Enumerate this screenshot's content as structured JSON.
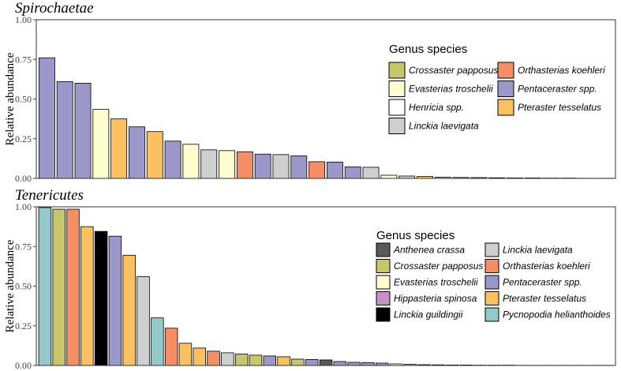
{
  "colors": {
    "Anthenea crassa": "#5a5a5a",
    "Crossaster papposus": "#c8c66a",
    "Evasterias troschelii": "#fdfdd0",
    "Henricia spp.": "#ffffff",
    "Hippasteria spinosa": "#c98fcb",
    "Linckia guildingii": "#000000",
    "Linckia laevigata": "#cfcfcf",
    "Orthasterias koehleri": "#f58d65",
    "Pentaceraster spp.": "#9b97c9",
    "Pteraster tesselatus": "#fbc160",
    "Pycnopodia helianthoides": "#93c9c9"
  },
  "chart_data": [
    {
      "type": "bar",
      "title": "Spirochaetae",
      "ylabel": "Relative abundance",
      "ylim": [
        0,
        1
      ],
      "yticks": [
        "0.00",
        "0.25",
        "0.50",
        "0.75",
        "1.00"
      ],
      "legend_title": "Genus species",
      "legend_position": "top-right",
      "legend": [
        "Crossaster papposus",
        "Evasterias troschelii",
        "Henricia spp.",
        "Linckia laevigata",
        "Orthasterias koehleri",
        "Pentaceraster spp.",
        "Pteraster tesselatus"
      ],
      "bars": [
        {
          "species": "Pentaceraster spp.",
          "value": 0.76
        },
        {
          "species": "Pentaceraster spp.",
          "value": 0.61
        },
        {
          "species": "Pentaceraster spp.",
          "value": 0.6
        },
        {
          "species": "Evasterias troschelii",
          "value": 0.435
        },
        {
          "species": "Pteraster tesselatus",
          "value": 0.375
        },
        {
          "species": "Pentaceraster spp.",
          "value": 0.325
        },
        {
          "species": "Pteraster tesselatus",
          "value": 0.295
        },
        {
          "species": "Pentaceraster spp.",
          "value": 0.235
        },
        {
          "species": "Evasterias troschelii",
          "value": 0.215
        },
        {
          "species": "Linckia laevigata",
          "value": 0.18
        },
        {
          "species": "Evasterias troschelii",
          "value": 0.175
        },
        {
          "species": "Orthasterias koehleri",
          "value": 0.168
        },
        {
          "species": "Pentaceraster spp.",
          "value": 0.153
        },
        {
          "species": "Linckia laevigata",
          "value": 0.15
        },
        {
          "species": "Pentaceraster spp.",
          "value": 0.142
        },
        {
          "species": "Orthasterias koehleri",
          "value": 0.105
        },
        {
          "species": "Pentaceraster spp.",
          "value": 0.103
        },
        {
          "species": "Pentaceraster spp.",
          "value": 0.073
        },
        {
          "species": "Linckia laevigata",
          "value": 0.07
        },
        {
          "species": "Evasterias troschelii",
          "value": 0.02
        },
        {
          "species": "Linckia laevigata",
          "value": 0.015
        },
        {
          "species": "Pteraster tesselatus",
          "value": 0.012
        },
        {
          "species": "Linckia laevigata",
          "value": 0.008
        },
        {
          "species": "Linckia laevigata",
          "value": 0.006
        },
        {
          "species": "Pentaceraster spp.",
          "value": 0.005
        },
        {
          "species": "Linckia laevigata",
          "value": 0.004
        },
        {
          "species": "Linckia laevigata",
          "value": 0.003
        },
        {
          "species": "Linckia laevigata",
          "value": 0.003
        },
        {
          "species": "Linckia laevigata",
          "value": 0.002
        },
        {
          "species": "Linckia laevigata",
          "value": 0.002
        },
        {
          "species": "Linckia laevigata",
          "value": 0.001
        },
        {
          "species": "Linckia laevigata",
          "value": 0.001
        }
      ]
    },
    {
      "type": "bar",
      "title": "Tenericutes",
      "ylabel": "Relative abundance",
      "ylim": [
        0,
        1
      ],
      "yticks": [
        "0.00",
        "0.25",
        "0.50",
        "0.75",
        "1.00"
      ],
      "legend_title": "Genus species",
      "legend_position": "right",
      "legend": [
        "Anthenea crassa",
        "Crossaster papposus",
        "Evasterias troschelii",
        "Hippasteria spinosa",
        "Linckia guildingii",
        "Linckia laevigata",
        "Orthasterias koehleri",
        "Pentaceraster spp.",
        "Pteraster tesselatus",
        "Pycnopodia helianthoides"
      ],
      "bars": [
        {
          "species": "Pycnopodia helianthoides",
          "value": 0.995
        },
        {
          "species": "Crossaster papposus",
          "value": 0.985
        },
        {
          "species": "Orthasterias koehleri",
          "value": 0.985
        },
        {
          "species": "Pteraster tesselatus",
          "value": 0.875
        },
        {
          "species": "Linckia guildingii",
          "value": 0.845
        },
        {
          "species": "Pentaceraster spp.",
          "value": 0.815
        },
        {
          "species": "Pteraster tesselatus",
          "value": 0.695
        },
        {
          "species": "Linckia laevigata",
          "value": 0.56
        },
        {
          "species": "Pycnopodia helianthoides",
          "value": 0.3
        },
        {
          "species": "Orthasterias koehleri",
          "value": 0.235
        },
        {
          "species": "Pteraster tesselatus",
          "value": 0.14
        },
        {
          "species": "Pteraster tesselatus",
          "value": 0.11
        },
        {
          "species": "Orthasterias koehleri",
          "value": 0.09
        },
        {
          "species": "Linckia laevigata",
          "value": 0.08
        },
        {
          "species": "Crossaster papposus",
          "value": 0.072
        },
        {
          "species": "Crossaster papposus",
          "value": 0.065
        },
        {
          "species": "Pentaceraster spp.",
          "value": 0.06
        },
        {
          "species": "Pteraster tesselatus",
          "value": 0.055
        },
        {
          "species": "Crossaster papposus",
          "value": 0.04
        },
        {
          "species": "Pentaceraster spp.",
          "value": 0.038
        },
        {
          "species": "Anthenea crassa",
          "value": 0.035
        },
        {
          "species": "Pentaceraster spp.",
          "value": 0.025
        },
        {
          "species": "Pentaceraster spp.",
          "value": 0.02
        },
        {
          "species": "Pentaceraster spp.",
          "value": 0.018
        },
        {
          "species": "Pentaceraster spp.",
          "value": 0.015
        },
        {
          "species": "Evasterias troschelii",
          "value": 0.01
        },
        {
          "species": "Linckia laevigata",
          "value": 0.008
        },
        {
          "species": "Linckia laevigata",
          "value": 0.005
        },
        {
          "species": "Linckia laevigata",
          "value": 0.004
        },
        {
          "species": "Linckia laevigata",
          "value": 0.003
        },
        {
          "species": "Linckia laevigata",
          "value": 0.003
        },
        {
          "species": "Linckia laevigata",
          "value": 0.002
        },
        {
          "species": "Linckia laevigata",
          "value": 0.002
        },
        {
          "species": "Linckia laevigata",
          "value": 0.002
        },
        {
          "species": "Linckia laevigata",
          "value": 0.001
        },
        {
          "species": "Linckia laevigata",
          "value": 0.001
        },
        {
          "species": "Linckia laevigata",
          "value": 0.001
        },
        {
          "species": "Linckia laevigata",
          "value": 0.001
        },
        {
          "species": "Linckia laevigata",
          "value": 0.001
        },
        {
          "species": "Linckia laevigata",
          "value": 0.001
        },
        {
          "species": "Linckia laevigata",
          "value": 0.001
        }
      ]
    }
  ]
}
